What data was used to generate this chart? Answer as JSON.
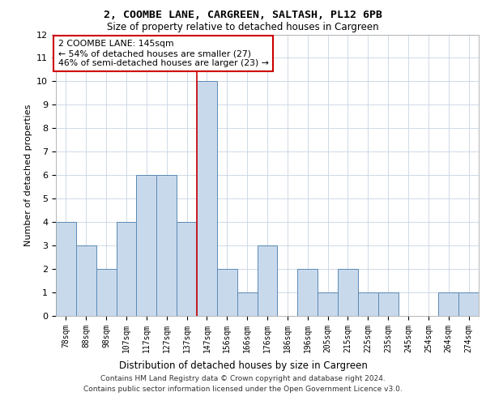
{
  "title1": "2, COOMBE LANE, CARGREEN, SALTASH, PL12 6PB",
  "title2": "Size of property relative to detached houses in Cargreen",
  "xlabel": "Distribution of detached houses by size in Cargreen",
  "ylabel": "Number of detached properties",
  "bin_labels": [
    "78sqm",
    "88sqm",
    "98sqm",
    "107sqm",
    "117sqm",
    "127sqm",
    "137sqm",
    "147sqm",
    "156sqm",
    "166sqm",
    "176sqm",
    "186sqm",
    "196sqm",
    "205sqm",
    "215sqm",
    "225sqm",
    "235sqm",
    "245sqm",
    "254sqm",
    "264sqm",
    "274sqm"
  ],
  "bar_heights": [
    4,
    3,
    2,
    4,
    6,
    6,
    4,
    10,
    2,
    1,
    3,
    0,
    2,
    1,
    2,
    1,
    1,
    0,
    0,
    1,
    1
  ],
  "bar_color": "#c9d9ec",
  "bar_edgecolor": "#5a8ab5",
  "highlight_index": 7,
  "highlight_line_color": "#cc0000",
  "annotation_text": "2 COOMBE LANE: 145sqm\n← 54% of detached houses are smaller (27)\n46% of semi-detached houses are larger (23) →",
  "annotation_box_edgecolor": "#cc0000",
  "ylim": [
    0,
    12
  ],
  "yticks": [
    0,
    1,
    2,
    3,
    4,
    5,
    6,
    7,
    8,
    9,
    10,
    11,
    12
  ],
  "footer1": "Contains HM Land Registry data © Crown copyright and database right 2024.",
  "footer2": "Contains public sector information licensed under the Open Government Licence v3.0.",
  "bg_color": "#ffffff",
  "grid_color": "#c8d4e3"
}
